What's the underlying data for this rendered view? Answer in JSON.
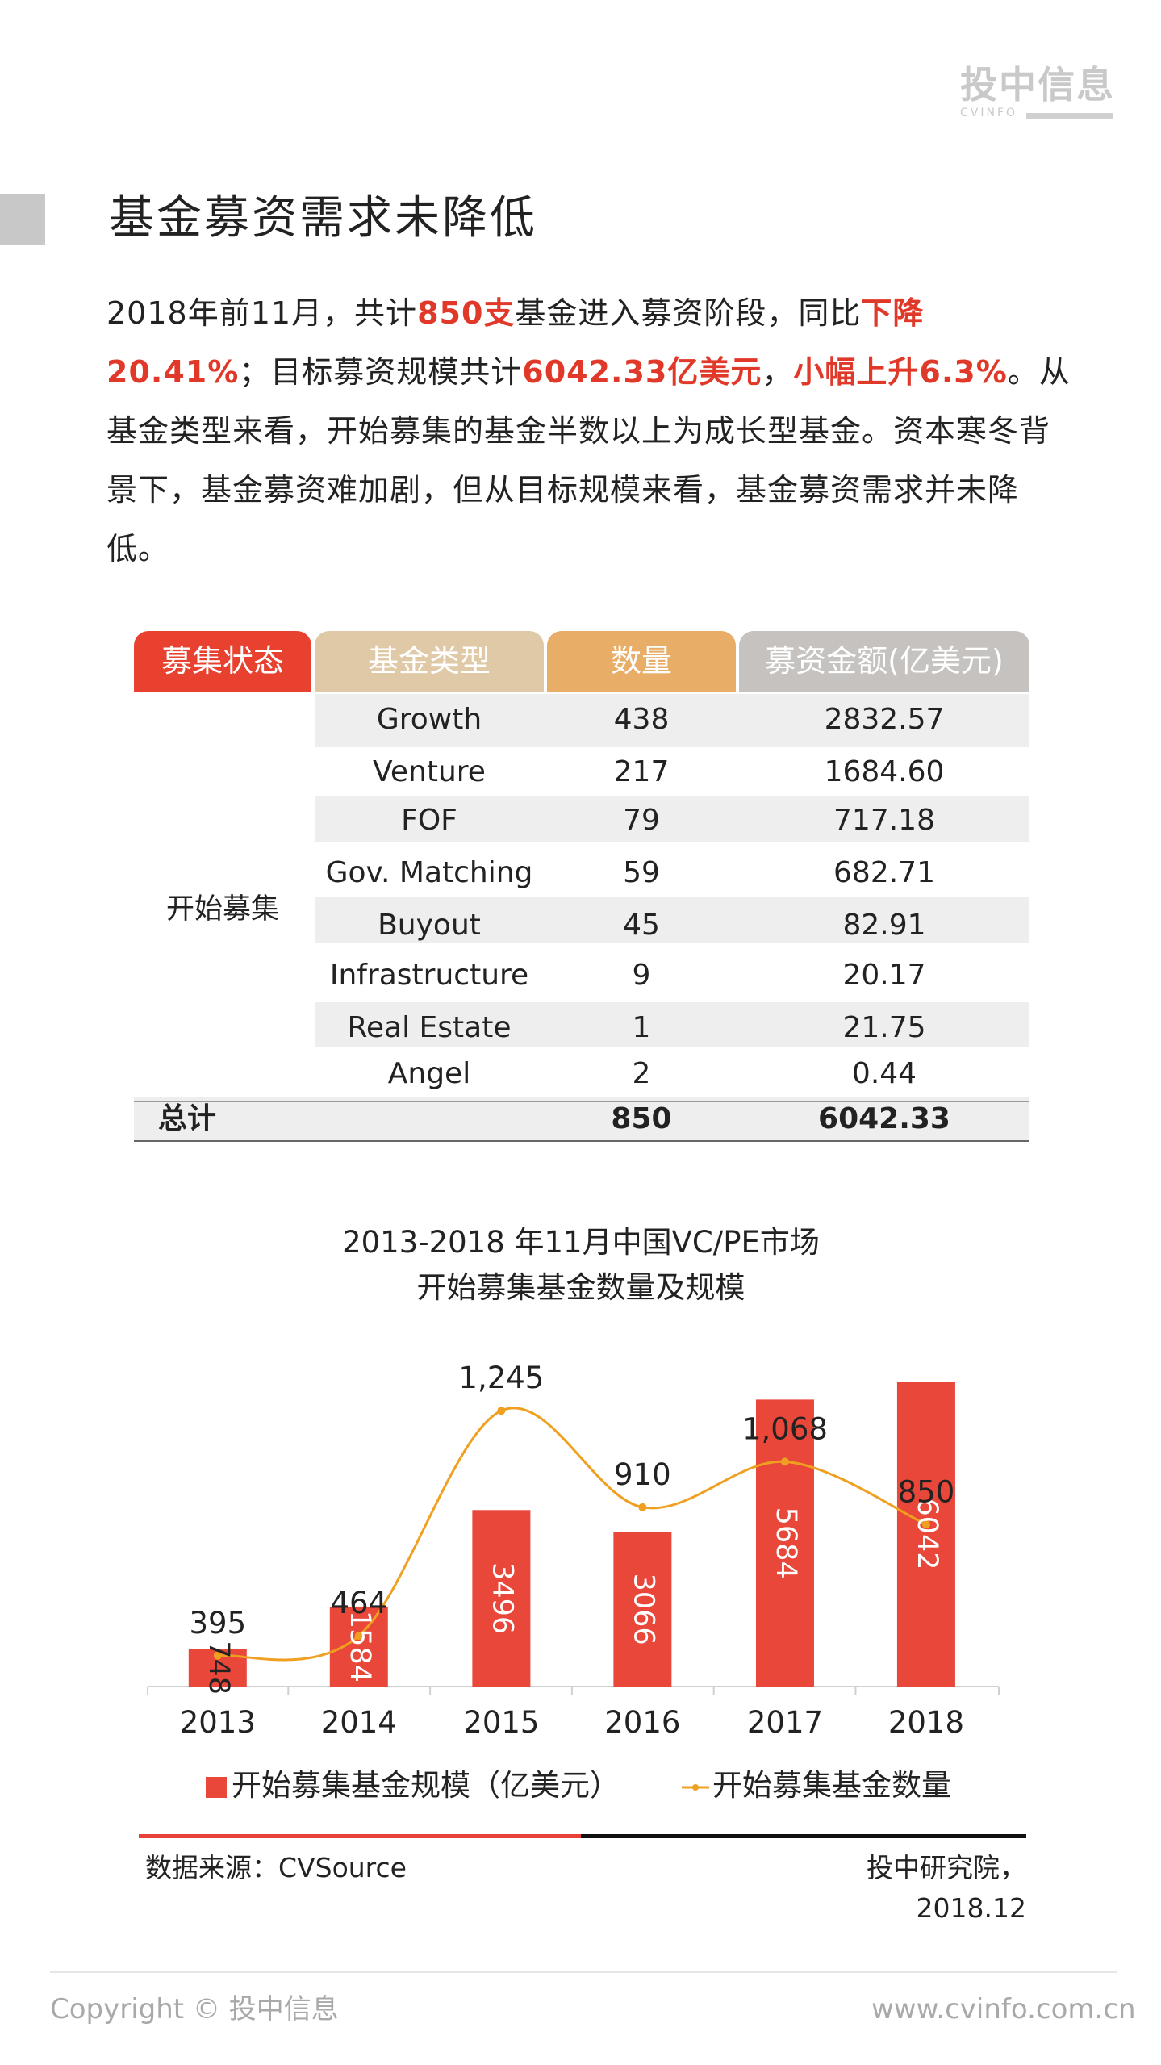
{
  "logo": {
    "text": "投中信息",
    "sub": "CVINFO"
  },
  "title": "基金募资需求未降低",
  "intro": {
    "p1": "2018年前11月，共计",
    "h1": "850支",
    "p2": "基金进入募资阶段，同比",
    "h2": "下降20.41%",
    "p3": "；目标募资规模共计",
    "h3": "6042.33亿美元",
    "p4": "，",
    "h4": "小幅上升6.3%",
    "p5": "。从基金类型来看，开始募集的基金半数以上为成长型基金。资本寒冬背景下，基金募资难加剧，但从目标规模来看，基金募资需求并未降低。"
  },
  "table": {
    "headers": [
      "募集状态",
      "基金类型",
      "数量",
      "募资金额(亿美元)"
    ],
    "header_colors": [
      "#e8412f",
      "#e0c9a6",
      "#e8ad67",
      "#c5c2c0"
    ],
    "status": "开始募集",
    "rows": [
      {
        "type": "Growth",
        "count": "438",
        "amount": "2832.57"
      },
      {
        "type": "Venture",
        "count": "217",
        "amount": "1684.60"
      },
      {
        "type": "FOF",
        "count": "79",
        "amount": "717.18"
      },
      {
        "type": "Gov. Matching",
        "count": "59",
        "amount": "682.71"
      },
      {
        "type": "Buyout",
        "count": "45",
        "amount": "82.91"
      },
      {
        "type": "Infrastructure",
        "count": "9",
        "amount": "20.17"
      },
      {
        "type": "Real Estate",
        "count": "1",
        "amount": "21.75"
      },
      {
        "type": "Angel",
        "count": "2",
        "amount": "0.44"
      }
    ],
    "total": {
      "label": "总计",
      "count": "850",
      "amount": "6042.33"
    }
  },
  "chart_title": {
    "line1": "2013-2018  年11月中国VC/PE市场",
    "line2": "开始募集基金数量及规模"
  },
  "chart_data": {
    "type": "bar",
    "categories": [
      "2013",
      "2014",
      "2015",
      "2016",
      "2017",
      "2018"
    ],
    "series": [
      {
        "name": "开始募集基金规模（亿美元）",
        "type": "bar",
        "values": [
          748,
          1584,
          3496,
          3066,
          5684,
          6042
        ],
        "labels": [
          "748",
          "1584",
          "3496",
          "3066",
          "5684",
          "6042"
        ],
        "color": "#e8473a"
      },
      {
        "name": "开始募集基金数量",
        "type": "line",
        "values": [
          395,
          464,
          1245,
          910,
          1068,
          850
        ],
        "labels": [
          "395",
          "464",
          "1,245",
          "910",
          "1,068",
          "850"
        ],
        "color": "#f0a020"
      }
    ]
  },
  "legend": {
    "bar": "开始募集基金规模（亿美元）",
    "line": "开始募集基金数量"
  },
  "source": "数据来源：CVSource",
  "org": "投中研究院，2018.12",
  "footer": {
    "copyright": "Copyright © 投中信息",
    "site": "www.cvinfo.com.cn"
  }
}
